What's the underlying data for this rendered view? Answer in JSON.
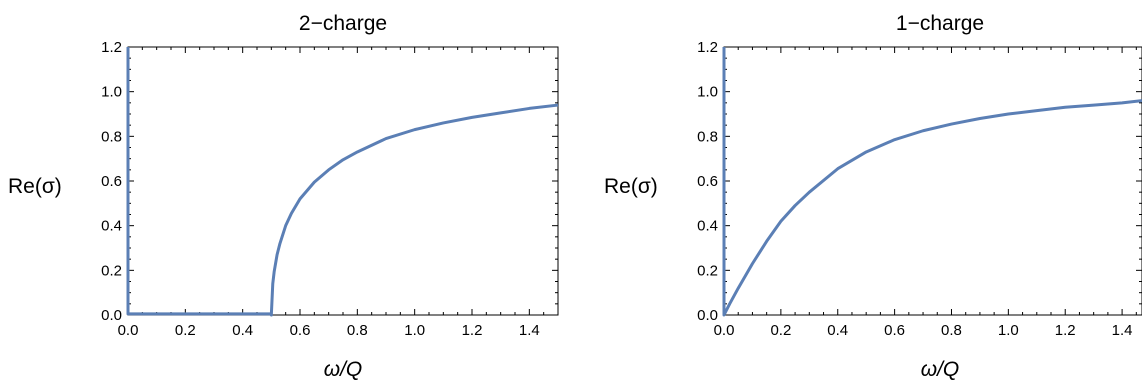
{
  "chart_data": [
    {
      "type": "line",
      "title": "2−charge",
      "xlabel": "ω/Q",
      "ylabel": "Re(σ)",
      "xlim": [
        0,
        1.5
      ],
      "ylim": [
        0,
        1.2
      ],
      "xticks": [
        "0.0",
        "0.2",
        "0.4",
        "0.6",
        "0.8",
        "1.0",
        "1.2",
        "1.4"
      ],
      "yticks": [
        "0.0",
        "0.2",
        "0.4",
        "0.6",
        "0.8",
        "1.0",
        "1.2"
      ],
      "grid": false,
      "color": "#5b7fb5",
      "series": [
        {
          "x": [
            0,
            0,
            0.01,
            0.2,
            0.4,
            0.5,
            0.5,
            0.505,
            0.51,
            0.52,
            0.53,
            0.55,
            0.57,
            0.6,
            0.65,
            0.7,
            0.75,
            0.8,
            0.9,
            1.0,
            1.1,
            1.2,
            1.3,
            1.4,
            1.5
          ],
          "y": [
            1.2,
            0.005,
            0.005,
            0.005,
            0.005,
            0.005,
            0.0,
            0.14,
            0.195,
            0.27,
            0.32,
            0.4,
            0.455,
            0.52,
            0.595,
            0.65,
            0.695,
            0.73,
            0.79,
            0.83,
            0.86,
            0.885,
            0.905,
            0.925,
            0.94
          ]
        }
      ]
    },
    {
      "type": "line",
      "title": "1−charge",
      "xlabel": "ω/Q",
      "ylabel": "Re(σ)",
      "xlim": [
        0,
        1.47
      ],
      "ylim": [
        0,
        1.2
      ],
      "xticks": [
        "0.0",
        "0.2",
        "0.4",
        "0.6",
        "0.8",
        "1.0",
        "1.2",
        "1.4"
      ],
      "yticks": [
        "0.0",
        "0.2",
        "0.4",
        "0.6",
        "0.8",
        "1.0",
        "1.2"
      ],
      "grid": false,
      "color": "#5b7fb5",
      "series": [
        {
          "x": [
            0,
            0,
            0.02,
            0.05,
            0.1,
            0.15,
            0.2,
            0.25,
            0.3,
            0.4,
            0.5,
            0.6,
            0.7,
            0.8,
            0.9,
            1.0,
            1.1,
            1.2,
            1.3,
            1.4,
            1.47
          ],
          "y": [
            1.2,
            0.0,
            0.05,
            0.12,
            0.23,
            0.33,
            0.42,
            0.49,
            0.55,
            0.655,
            0.73,
            0.785,
            0.825,
            0.855,
            0.88,
            0.9,
            0.915,
            0.93,
            0.94,
            0.95,
            0.96
          ]
        }
      ]
    }
  ]
}
